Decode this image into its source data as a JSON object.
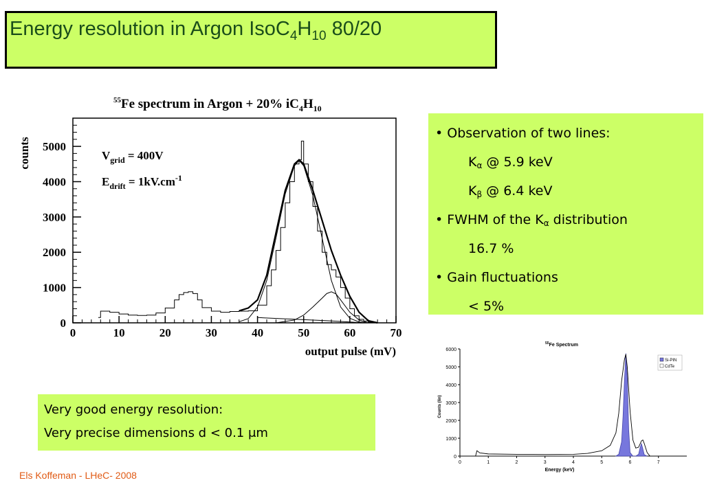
{
  "slide": {
    "title_main": "Energy resolution in Argon IsoC",
    "title_sub1": "4",
    "title_h": "H",
    "title_sub2": "10",
    "title_tail": " 80/20"
  },
  "bullets": {
    "b1": "• Observation of two lines:",
    "ka_k": "K",
    "ka_sub": "α",
    "ka_text": " @ 5.9 keV",
    "kb_k": "K",
    "kb_sub": "β",
    "kb_text": " @ 6.4 keV",
    "b2_pre": "• FWHM of the K",
    "b2_sub": "α",
    "b2_post": " distribution",
    "fwhm": "16.7 %",
    "b3": "• Gain fluctuations",
    "gain": "< 5%"
  },
  "summary": {
    "line1": "Very good energy resolution:",
    "line2": "Very precise dimensions d < 0.1 μm"
  },
  "footer": "Els Koffeman - LHeC- 2008",
  "chart_data": [
    {
      "type": "line",
      "title_sup": "55",
      "title_pre": "Fe spectrum in Argon + 20% iC",
      "title_sub1": "4",
      "title_h": "H",
      "title_sub2": "10",
      "xlabel": "output pulse (mV)",
      "ylabel": "counts",
      "xlim": [
        0,
        70
      ],
      "ylim": [
        0,
        5800
      ],
      "xticks": [
        0,
        10,
        20,
        30,
        40,
        50,
        60,
        70
      ],
      "yticks": [
        0,
        1000,
        2000,
        3000,
        4000,
        5000
      ],
      "annotation1": {
        "main": "V",
        "sub": "grid",
        "rest": " = 400V"
      },
      "annotation2": {
        "main": "E",
        "sub": "drift",
        "rest": " = 1kV.cm",
        "sup": "-1"
      },
      "series": [
        {
          "role": "histogram",
          "x": [
            5.5,
            6,
            8,
            10,
            12,
            14,
            16,
            18,
            20,
            22,
            23,
            24,
            25,
            26,
            27,
            28,
            30,
            32,
            34,
            36,
            38,
            40,
            42,
            43,
            44,
            45,
            46,
            47,
            48,
            49,
            49.5,
            50,
            51,
            52,
            53,
            54,
            55,
            56,
            57,
            58,
            59,
            60,
            61,
            62,
            63,
            64,
            65,
            66
          ],
          "y": [
            150,
            330,
            300,
            250,
            220,
            210,
            220,
            280,
            420,
            650,
            800,
            860,
            880,
            830,
            650,
            430,
            330,
            300,
            320,
            330,
            340,
            500,
            1050,
            1500,
            2050,
            2700,
            3400,
            4000,
            4500,
            4620,
            5150,
            4500,
            4000,
            3300,
            2600,
            2000,
            1650,
            1500,
            1300,
            1000,
            700,
            400,
            200,
            100,
            50,
            20,
            0,
            0
          ]
        },
        {
          "role": "kalpha_fit",
          "x": [
            36,
            38,
            40,
            42,
            44,
            46,
            48,
            49,
            50,
            52,
            54,
            56,
            58,
            60,
            62,
            64
          ],
          "y": [
            30,
            120,
            450,
            1200,
            2400,
            3650,
            4450,
            4600,
            4450,
            3600,
            2400,
            1200,
            450,
            130,
            25,
            0
          ]
        },
        {
          "role": "kbeta_fit",
          "x": [
            44,
            48,
            50,
            52,
            54,
            55,
            56,
            57,
            58,
            60,
            62,
            64
          ],
          "y": [
            0,
            80,
            220,
            450,
            700,
            830,
            880,
            820,
            650,
            300,
            80,
            0
          ]
        },
        {
          "role": "background",
          "x": [
            40,
            45,
            50,
            55,
            60,
            63
          ],
          "y": [
            150,
            120,
            90,
            60,
            25,
            0
          ]
        },
        {
          "role": "total_fit",
          "x": [
            36,
            38,
            40,
            42,
            44,
            46,
            48,
            49,
            50,
            52,
            54,
            56,
            58,
            60,
            62,
            64,
            66
          ],
          "y": [
            340,
            420,
            650,
            1350,
            2550,
            3750,
            4500,
            4620,
            4500,
            3750,
            2900,
            2050,
            1350,
            750,
            300,
            60,
            0
          ]
        }
      ]
    },
    {
      "type": "area",
      "title_sup": "55",
      "title_main": "Fe Spectrum",
      "xlabel": "Energy (keV)",
      "ylabel": "Counts (lin)",
      "xlim": [
        0,
        8
      ],
      "ylim": [
        0,
        6000
      ],
      "xticks": [
        0,
        1,
        2,
        3,
        4,
        5,
        6,
        7
      ],
      "yticks": [
        0,
        1000,
        2000,
        3000,
        4000,
        5000,
        6000
      ],
      "legend_position": "top-right",
      "series": [
        {
          "name": "Si-PIN",
          "color": "#7777dd",
          "x": [
            5.5,
            5.6,
            5.7,
            5.75,
            5.8,
            5.85,
            5.9,
            5.95,
            6.0,
            6.1,
            6.2,
            6.3,
            6.35,
            6.4,
            6.45,
            6.5,
            6.6
          ],
          "y": [
            0,
            100,
            800,
            2200,
            4200,
            5750,
            4400,
            1500,
            200,
            0,
            0,
            100,
            450,
            700,
            400,
            80,
            0
          ]
        },
        {
          "name": "CdTe",
          "color": "#ffffff",
          "x": [
            0.55,
            0.6,
            0.7,
            1,
            2,
            3,
            4,
            4.5,
            5,
            5.3,
            5.5,
            5.6,
            5.7,
            5.8,
            5.85,
            5.9,
            6.0,
            6.1,
            6.2,
            6.3,
            6.4,
            6.45,
            6.5,
            6.6,
            6.7
          ],
          "y": [
            0,
            300,
            180,
            120,
            100,
            90,
            100,
            150,
            300,
            600,
            1300,
            2400,
            4200,
            5400,
            5700,
            5000,
            2500,
            900,
            450,
            500,
            850,
            900,
            700,
            200,
            0
          ]
        }
      ]
    }
  ]
}
